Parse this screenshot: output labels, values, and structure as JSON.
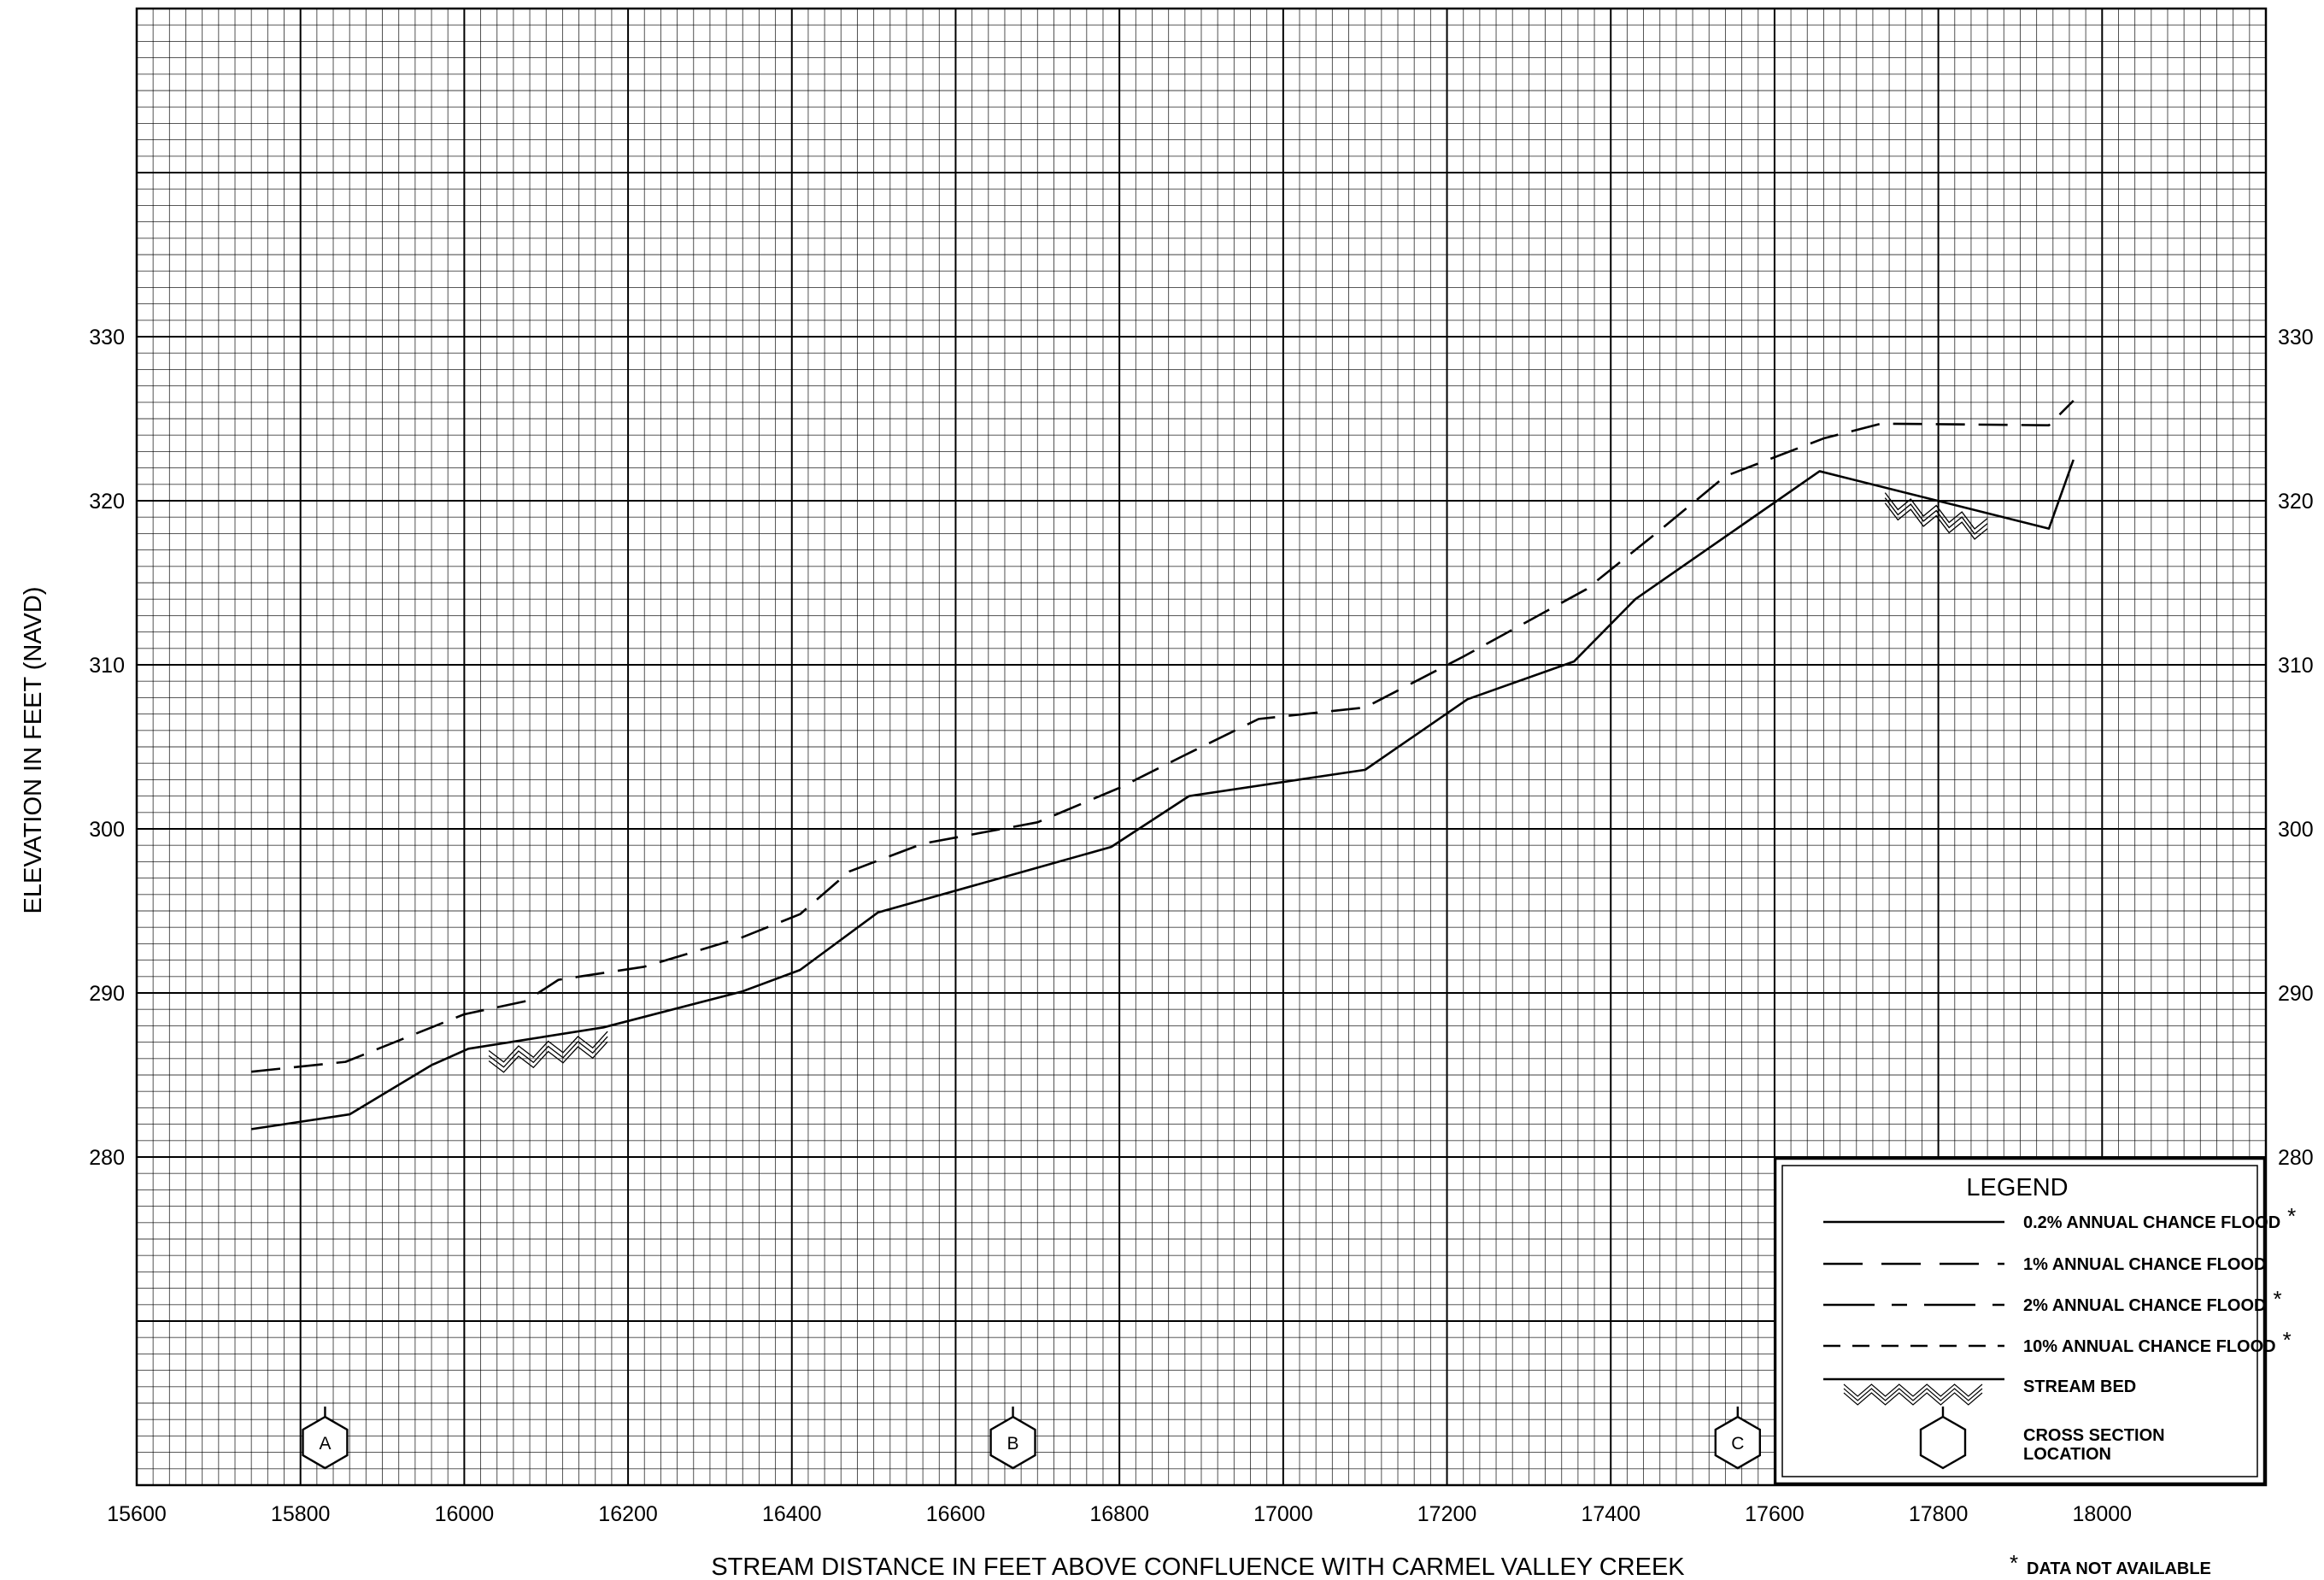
{
  "chart_data": {
    "type": "line",
    "xlabel": "STREAM DISTANCE IN FEET ABOVE CONFLUENCE WITH CARMEL VALLEY CREEK",
    "ylabel": "ELEVATION IN FEET (NAVD)",
    "xlim": [
      15600,
      18200
    ],
    "ylim": [
      260,
      350
    ],
    "x_ticks": [
      "15600",
      "15800",
      "16000",
      "16200",
      "16400",
      "16600",
      "16800",
      "17000",
      "17200",
      "17400",
      "17600",
      "17800",
      "18000"
    ],
    "y_ticks": [
      "280",
      "290",
      "300",
      "310",
      "320",
      "330"
    ],
    "grid": true,
    "series": [
      {
        "name": "1% ANNUAL CHANCE FLOOD",
        "style": "dashed",
        "x": [
          15740,
          15855,
          16000,
          16075,
          16115,
          16220,
          16340,
          16410,
          16470,
          16560,
          16700,
          16800,
          16880,
          16970,
          17100,
          17220,
          17370,
          17460,
          17540,
          17660,
          17730,
          17935,
          17965
        ],
        "y": [
          285.2,
          285.8,
          288.7,
          289.5,
          290.8,
          291.6,
          293.4,
          294.8,
          297.4,
          299.1,
          300.4,
          302.5,
          304.5,
          306.7,
          307.4,
          310.5,
          314.6,
          318.2,
          321.5,
          323.8,
          324.7,
          324.6,
          326.1
        ]
      },
      {
        "name": "STREAM BED",
        "style": "solid",
        "x": [
          15740,
          15860,
          15960,
          16005,
          16170,
          16340,
          16410,
          16505,
          16790,
          16885,
          17100,
          17225,
          17355,
          17430,
          17655,
          17935,
          17965
        ],
        "y": [
          281.7,
          282.6,
          285.6,
          286.6,
          287.9,
          290.1,
          291.4,
          294.9,
          298.9,
          302.0,
          303.6,
          307.9,
          310.2,
          314.0,
          321.8,
          318.3,
          322.5
        ]
      }
    ],
    "cross_sections": [
      {
        "label": "A",
        "x": 15830
      },
      {
        "label": "B",
        "x": 16670
      },
      {
        "label": "C",
        "x": 17555
      }
    ],
    "legend": {
      "title": "LEGEND",
      "position": "bottom-right",
      "entries": [
        {
          "label": "0.2% ANNUAL CHANCE FLOOD",
          "style": "solid",
          "star": "*"
        },
        {
          "label": "1% ANNUAL CHANCE FLOOD",
          "style": "long-dash",
          "star": ""
        },
        {
          "label": "2% ANNUAL CHANCE FLOOD",
          "style": "dash-dot",
          "star": "*"
        },
        {
          "label": "10% ANNUAL CHANCE FLOOD",
          "style": "short-dash",
          "star": "*"
        },
        {
          "label": "STREAM BED",
          "style": "hatched",
          "star": ""
        },
        {
          "label": "CROSS SECTION LOCATION",
          "style": "hexagon",
          "star": ""
        }
      ]
    },
    "note": {
      "star": "*",
      "text": "DATA NOT AVAILABLE"
    }
  }
}
